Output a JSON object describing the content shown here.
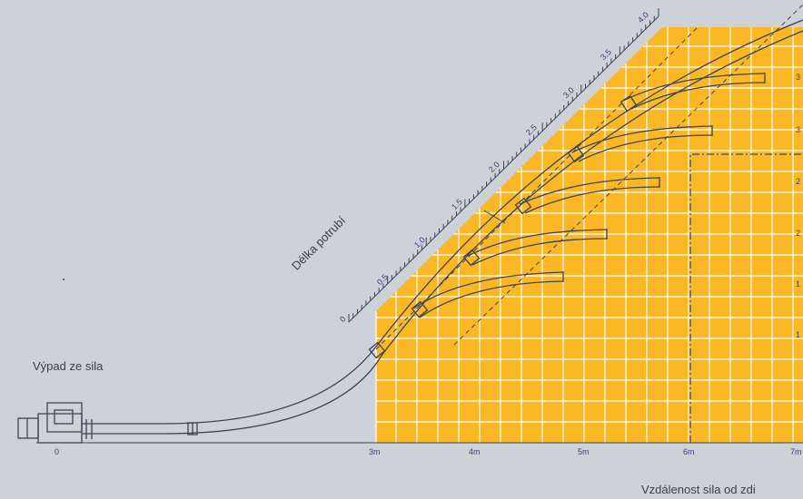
{
  "labels": {
    "pipe_length": "Délka potrubí",
    "silo_outlet": "Výpad ze sila",
    "distance": "Vzdálenost sila od zdi"
  },
  "x_ticks": [
    {
      "value": 0,
      "label": "0"
    },
    {
      "value": 3,
      "label": "3m"
    },
    {
      "value": 4,
      "label": "4m"
    },
    {
      "value": 5,
      "label": "5m"
    },
    {
      "value": 6,
      "label": "6m"
    },
    {
      "value": 7,
      "label": "7m"
    }
  ],
  "length_ticks": [
    "0",
    "0.5",
    "1.0",
    "1.5",
    "2.0",
    "2.5",
    "3.0",
    "3.5",
    "4.0"
  ],
  "right_ticks": [
    "3",
    "3",
    "2",
    "2",
    "1",
    "1"
  ],
  "colors": {
    "background": "#cdd1d8",
    "grid_fill": "#fbb824",
    "grid_lines": "#ffffff",
    "pipe": "#3a4658",
    "tick_text": "#3b3f7a"
  }
}
